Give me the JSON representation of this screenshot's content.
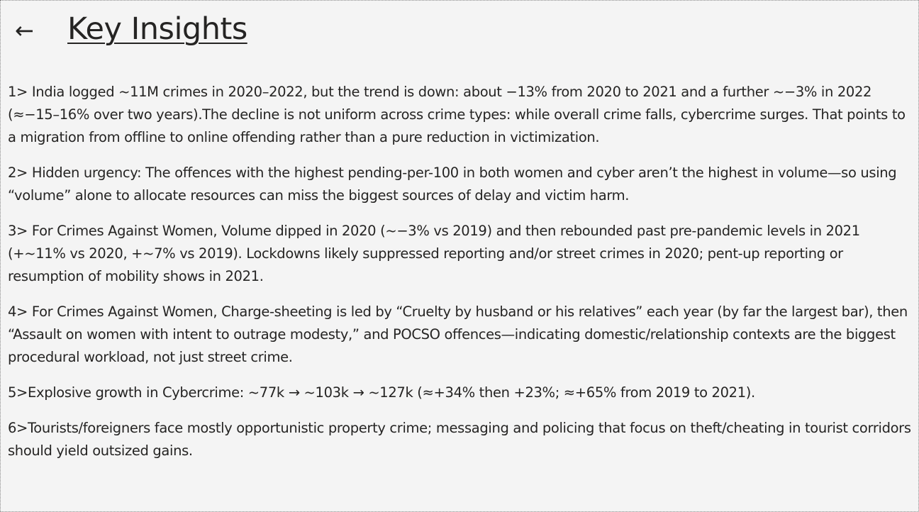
{
  "header": {
    "back_icon": "←",
    "title": "Key Insights"
  },
  "insights": [
    "1> India logged ~11M crimes in 2020–2022, but the trend is down: about −13% from 2020 to 2021 and a further ~−3% in 2022 (≈−15–16% over two years).The decline is not uniform across crime types: while overall crime falls, cybercrime surges. That points to a migration from offline to online offending rather than a pure reduction in victimization.",
    "2> Hidden urgency: The offences with the highest pending-per-100 in both women and cyber aren’t the highest in volume—so using “volume” alone to allocate resources can miss the biggest sources of delay and victim harm.",
    "3> For Crimes Against Women, Volume dipped in 2020 (~−3% vs 2019) and then rebounded past pre-pandemic levels in 2021 (+~11% vs 2020, +~7% vs 2019). Lockdowns likely suppressed reporting and/or street crimes in 2020; pent-up reporting or resumption of mobility shows in 2021.",
    "4> For Crimes Against Women, Charge-sheeting is led by “Cruelty by husband or his relatives” each year (by far the largest bar), then “Assault on women with intent to outrage modesty,” and POCSO offences—indicating domestic/relationship contexts are the biggest procedural workload, not just street crime.",
    "5>Explosive growth in Cybercrime: ~77k → ~103k → ~127k (≈+34% then +23%; ≈+65% from 2019 to 2021).",
    "6>Tourists/foreigners face mostly opportunistic property crime; messaging and policing that focus on theft/cheating in tourist corridors should yield outsized gains."
  ]
}
